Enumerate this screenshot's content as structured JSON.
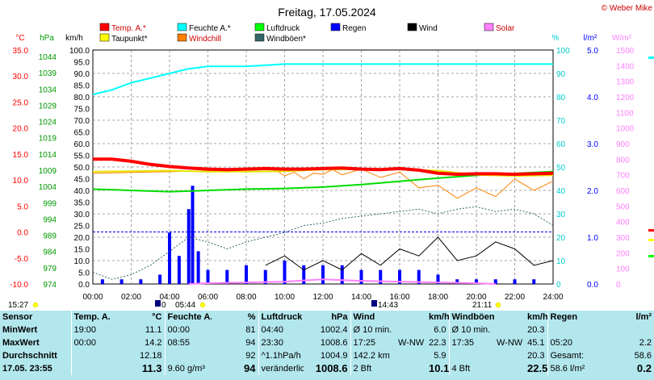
{
  "header": {
    "title": "Freitag, 17.05.2024",
    "copyright": "© Weber Mike"
  },
  "legend": [
    {
      "label": "Temp. A.*",
      "color": "#ff0000"
    },
    {
      "label": "Feuchte A.*",
      "color": "#00ffff"
    },
    {
      "label": "Luftdruck",
      "color": "#00ff00"
    },
    {
      "label": "Regen",
      "color": "#0000ff"
    },
    {
      "label": "Wind",
      "color": "#000000"
    },
    {
      "label": "Solar",
      "color": "#ff80ff"
    },
    {
      "label": "Taupunkt*",
      "color": "#ffff00"
    },
    {
      "label": "Windchill",
      "color": "#ff8000"
    },
    {
      "label": "Windböen*",
      "color": "#336666"
    }
  ],
  "axes": {
    "temp_unit": "°C",
    "pressure_unit": "hPa",
    "speed_unit": "km/h",
    "humidity_unit": "%",
    "rain_unit": "l/m²",
    "solar_unit": "W/m²",
    "temp_ticks": [
      "35.0",
      "30.0",
      "25.0",
      "20.0",
      "15.0",
      "10.0",
      "5.0",
      "0.0",
      "-5.0",
      "-10.0"
    ],
    "pressure_ticks": [
      "1044",
      "1039",
      "1034",
      "1029",
      "1024",
      "1019",
      "1014",
      "1009",
      "1004",
      "999",
      "994",
      "989",
      "984",
      "979",
      "974"
    ],
    "speed_ticks": [
      "100.0",
      "95.0",
      "90.0",
      "85.0",
      "80.0",
      "75.0",
      "70.0",
      "65.0",
      "60.0",
      "55.0",
      "50.0",
      "45.0",
      "40.0",
      "35.0",
      "30.0",
      "25.0",
      "20.0",
      "15.0",
      "10.0",
      "5.0",
      "0.0"
    ],
    "humidity_ticks": [
      "100",
      "90",
      "80",
      "70",
      "60",
      "50",
      "40",
      "30",
      "20",
      "10",
      "0"
    ],
    "rain_ticks": [
      "5.0",
      "4.0",
      "3.0",
      "2.0",
      "1.0",
      "0.0"
    ],
    "solar_ticks": [
      "1500",
      "1400",
      "1300",
      "1200",
      "1100",
      "1000",
      "900",
      "800",
      "700",
      "600",
      "500",
      "400",
      "300",
      "200",
      "100",
      "0"
    ],
    "time_ticks": [
      "00:00",
      "02:00",
      "04:00",
      "06:00",
      "08:00",
      "10:00",
      "12:00",
      "14:00",
      "16:00",
      "18:00",
      "20:00",
      "22:00",
      "24:00"
    ]
  },
  "sun_moon": {
    "sunrise": "05:44",
    "sunset": "21:11",
    "moonrise": "15:27",
    "moon_other": "14:43",
    "moonset_day_marker": "0"
  },
  "chart_data": {
    "type": "line",
    "x_unit": "hours",
    "xlim": [
      0,
      24
    ],
    "series": [
      {
        "name": "Temp. A.*",
        "unit": "°C",
        "x": [
          0,
          1,
          2,
          3,
          4,
          5,
          6,
          7,
          8,
          9,
          10,
          11,
          12,
          13,
          14,
          15,
          16,
          17,
          18,
          19,
          20,
          21,
          22,
          23,
          24
        ],
        "y": [
          14.0,
          14.0,
          13.6,
          13.0,
          12.6,
          12.3,
          12.1,
          12.0,
          12.1,
          12.2,
          12.1,
          12.1,
          12.2,
          12.3,
          12.1,
          12.0,
          12.2,
          11.9,
          11.3,
          11.1,
          11.2,
          11.2,
          11.1,
          11.2,
          11.3
        ]
      },
      {
        "name": "Feuchte A.*",
        "unit": "%",
        "x": [
          0,
          1,
          2,
          3,
          4,
          5,
          6,
          7,
          8,
          9,
          10,
          11,
          12,
          13,
          14,
          15,
          16,
          17,
          18,
          19,
          20,
          21,
          22,
          23,
          24
        ],
        "y": [
          81,
          83,
          86,
          88,
          90,
          92,
          93,
          93,
          93,
          93.5,
          94,
          94,
          94,
          94,
          94,
          94,
          94,
          94,
          94,
          94,
          94,
          94,
          94,
          94,
          94
        ]
      },
      {
        "name": "Luftdruck",
        "unit": "hPa",
        "x": [
          0,
          2,
          4,
          6,
          8,
          10,
          12,
          14,
          16,
          18,
          20,
          22,
          24
        ],
        "y": [
          1003.2,
          1002.8,
          1002.4,
          1002.8,
          1003.2,
          1003.4,
          1003.8,
          1004.6,
          1005.6,
          1006.6,
          1007.4,
          1008.0,
          1008.6
        ]
      },
      {
        "name": "Taupunkt*",
        "unit": "°C",
        "x": [
          0,
          2,
          4,
          6,
          8,
          10,
          12,
          14,
          16,
          18,
          20,
          22,
          24
        ],
        "y": [
          11.6,
          11.7,
          11.8,
          11.6,
          11.6,
          11.7,
          12.0,
          12.1,
          12.0,
          11.8,
          11.0,
          10.8,
          10.9
        ]
      },
      {
        "name": "Windchill",
        "unit": "°C",
        "x": [
          0,
          9.5,
          10,
          10.5,
          11,
          11.5,
          12,
          12.5,
          13,
          14,
          15,
          16,
          17,
          18,
          19,
          20,
          21,
          22,
          23,
          24
        ],
        "y": [
          11.3,
          12.0,
          10.8,
          11.5,
          10.2,
          11.3,
          11.1,
          12.0,
          11.0,
          12.1,
          10.5,
          11.5,
          8.5,
          9.0,
          6.5,
          8.5,
          6.8,
          10.2,
          8.0,
          9.8
        ]
      },
      {
        "name": "Windböen*",
        "unit": "km/h",
        "x": [
          0,
          1,
          2,
          3,
          4,
          5,
          6,
          7,
          8,
          9,
          10,
          11,
          12,
          13,
          14,
          15,
          16,
          17,
          18,
          19,
          20,
          21,
          22,
          23,
          24
        ],
        "y": [
          5,
          2,
          4,
          8,
          14,
          20,
          18,
          15,
          18,
          20,
          22,
          25,
          26,
          28,
          29,
          30,
          31,
          32,
          30,
          32,
          33,
          31,
          32,
          30,
          25
        ]
      },
      {
        "name": "Wind",
        "unit": "km/h",
        "x": [
          9,
          10,
          11,
          12,
          13,
          14,
          15,
          16,
          17,
          18,
          19,
          20,
          21,
          22,
          23,
          24
        ],
        "y": [
          8,
          12,
          6,
          10,
          6,
          13,
          8,
          15,
          12,
          20,
          10,
          12,
          18,
          15,
          8,
          10
        ]
      },
      {
        "name": "Regen",
        "unit": "l/m²",
        "type": "bar",
        "x": [
          0.5,
          1.5,
          2.5,
          3.5,
          4,
          4.5,
          5,
          5.2,
          5.5,
          6,
          7,
          8,
          9,
          10,
          11,
          12,
          13,
          14,
          15,
          16,
          17,
          18,
          19,
          20,
          21,
          22,
          23
        ],
        "y": [
          0.1,
          0.1,
          0.1,
          0.2,
          1.1,
          0.6,
          1.6,
          2.1,
          0.7,
          0.3,
          0.3,
          0.4,
          0.3,
          0.5,
          0.4,
          0.4,
          0.4,
          0.3,
          0.3,
          0.3,
          0.3,
          0.2,
          0.1,
          0.1,
          0.1,
          0.1,
          0.1
        ]
      },
      {
        "name": "Solar",
        "unit": "W/m²",
        "x": [
          5,
          6,
          8,
          10,
          12,
          14,
          16,
          18,
          20,
          21
        ],
        "y": [
          0,
          5,
          10,
          15,
          30,
          20,
          15,
          10,
          5,
          0
        ]
      }
    ]
  },
  "stats": {
    "headers": {
      "sensor": "Sensor",
      "temp": "Temp. A.",
      "temp_unit": "°C",
      "hum": "Feuchte A.",
      "hum_unit": "%",
      "press": "Luftdruck",
      "press_unit": "hPa",
      "wind": "Wind",
      "wind_unit": "km/h",
      "gust": "Windböen",
      "gust_unit": "km/h",
      "rain": "Regen",
      "rain_unit": "l/m²"
    },
    "rows": [
      {
        "label": "MinWert",
        "temp_t": "19:00",
        "temp_v": "11.1",
        "hum_t": "00:00",
        "hum_v": "81",
        "press_t": "04:40",
        "press_v": "1002.4",
        "wind_t": "Ø 10 min.",
        "wind_d": "",
        "wind_v": "6.0",
        "gust_t": "Ø 10 min.",
        "gust_d": "",
        "gust_v": "20.3",
        "rain_t": "",
        "rain_v": ""
      },
      {
        "label": "MaxWert",
        "temp_t": "00:00",
        "temp_v": "14.2",
        "hum_t": "08:55",
        "hum_v": "94",
        "press_t": "23:30",
        "press_v": "1008.6",
        "wind_t": "17:25",
        "wind_d": "W-NW",
        "wind_v": "22.3",
        "gust_t": "17:35",
        "gust_d": "W-NW",
        "gust_v": "45.1",
        "rain_t": "05:20",
        "rain_v": "2.2"
      },
      {
        "label": "Durchschnitt",
        "temp_t": "",
        "temp_v": "12.18",
        "hum_t": "",
        "hum_v": "92",
        "press_t": "^1.1hPa/h",
        "press_v": "1004.9",
        "wind_t": "142.2 km",
        "wind_d": "",
        "wind_v": "5.9",
        "gust_t": "",
        "gust_d": "",
        "gust_v": "20.3",
        "rain_t": "Gesamt:",
        "rain_v": "58.6"
      },
      {
        "label": "17.05. 23:55",
        "temp_t": "",
        "temp_v": "11.3",
        "hum_t": "9.60 g/m³",
        "hum_v": "94",
        "press_t": "veränderlich",
        "press_v": "1008.6",
        "wind_t": "2 Bft",
        "wind_d": "",
        "wind_v": "10.1",
        "gust_t": "4 Bft",
        "gust_d": "",
        "gust_v": "22.5",
        "rain_t": "58.6 l/m²",
        "rain_v": "0.2"
      }
    ]
  }
}
